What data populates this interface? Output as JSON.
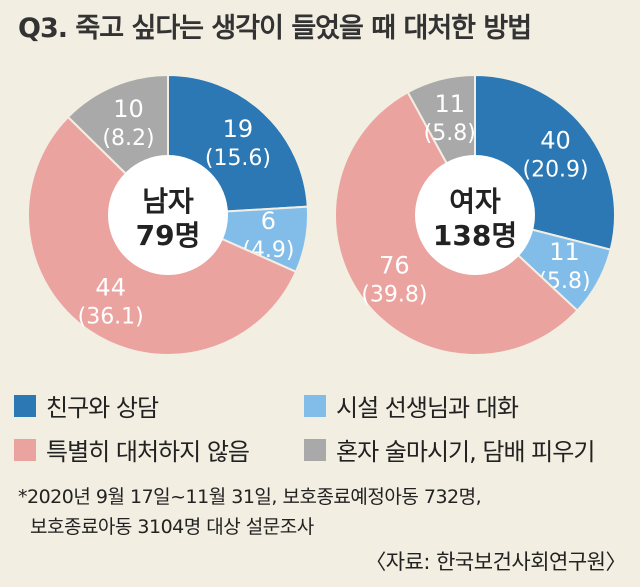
{
  "title": "Q3. 죽고 싶다는 생각이 들었을 때 대처한 방법",
  "colors": {
    "friend": "#2b78b4",
    "teacher": "#82bde9",
    "none": "#eba3a0",
    "alone": "#a9a9a9"
  },
  "chart_data": [
    {
      "type": "pie",
      "center_label": "남자",
      "center_count": "79명",
      "slices": [
        {
          "key": "friend",
          "value": 19,
          "value_label": "19",
          "pct_label": "(15.6)"
        },
        {
          "key": "teacher",
          "value": 6,
          "value_label": "6",
          "pct_label": "(4.9)"
        },
        {
          "key": "none",
          "value": 44,
          "value_label": "44",
          "pct_label": "(36.1)"
        },
        {
          "key": "alone",
          "value": 10,
          "value_label": "10",
          "pct_label": "(8.2)"
        }
      ]
    },
    {
      "type": "pie",
      "center_label": "여자",
      "center_count": "138명",
      "slices": [
        {
          "key": "friend",
          "value": 40,
          "value_label": "40",
          "pct_label": "(20.9)"
        },
        {
          "key": "teacher",
          "value": 11,
          "value_label": "11",
          "pct_label": "(5.8)"
        },
        {
          "key": "none",
          "value": 76,
          "value_label": "76",
          "pct_label": "(39.8)"
        },
        {
          "key": "alone",
          "value": 11,
          "value_label": "11",
          "pct_label": "(5.8)"
        }
      ]
    }
  ],
  "legend": [
    {
      "key": "friend",
      "label": "친구와 상담"
    },
    {
      "key": "teacher",
      "label": "시설 선생님과 대화"
    },
    {
      "key": "none",
      "label": "특별히 대처하지 않음"
    },
    {
      "key": "alone",
      "label": "혼자 술마시기, 담배 피우기"
    }
  ],
  "footnote": {
    "line1": "*2020년 9월 17일~11월 31일, 보호종료예정아동 732명,",
    "line2": "보호종료아동 3104명 대상 설문조사"
  },
  "source": "〈자료: 한국보건사회연구원〉"
}
